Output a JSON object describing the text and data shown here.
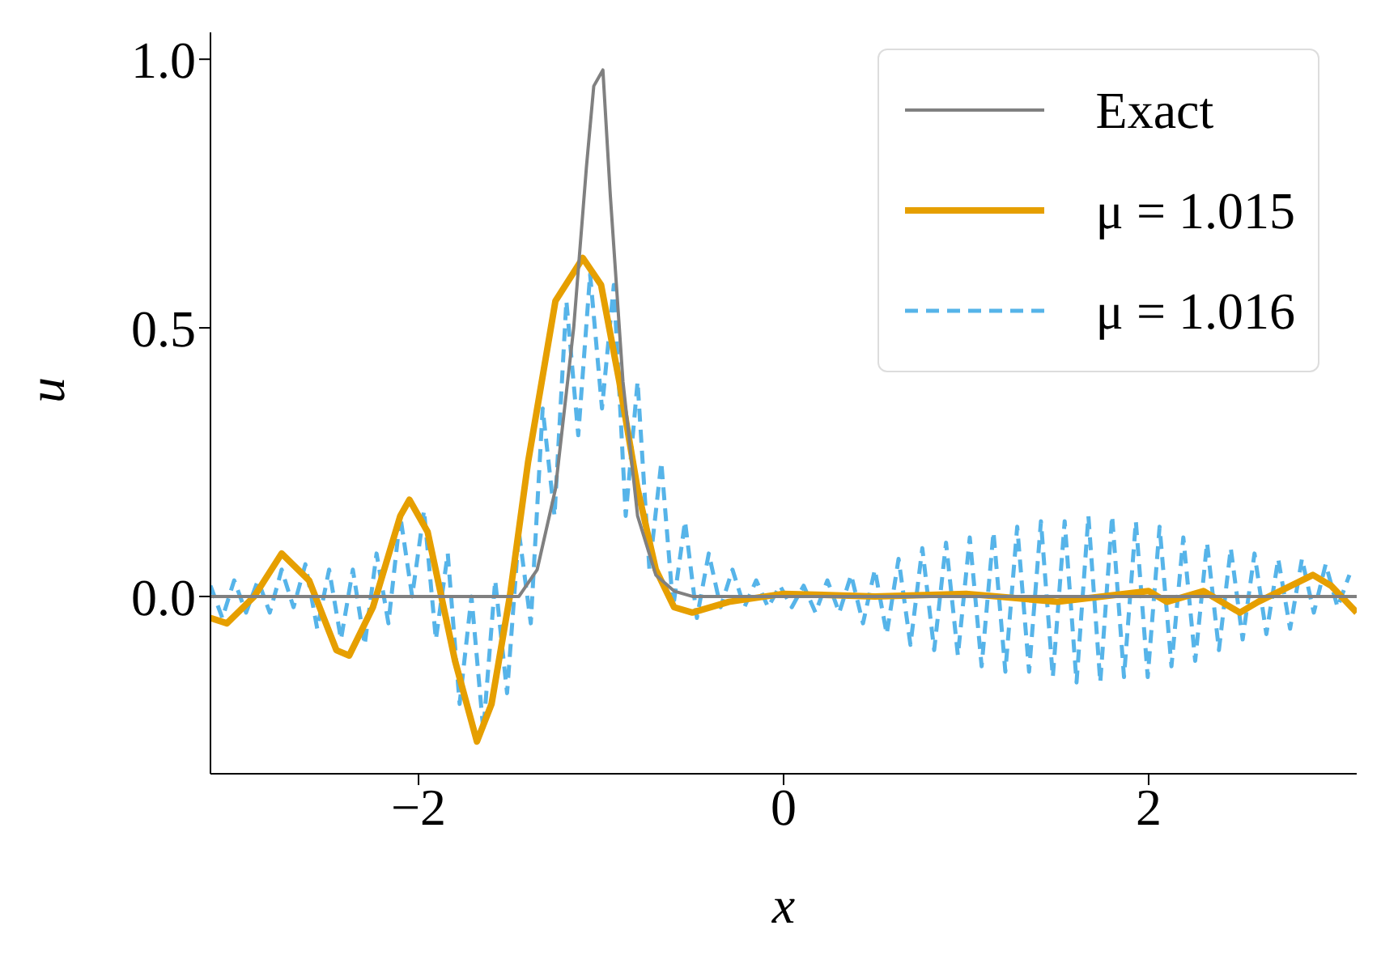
{
  "chart_data": {
    "type": "line",
    "xlabel": "x",
    "ylabel": "u",
    "xlim": [
      -3.14,
      3.14
    ],
    "ylim": [
      -0.33,
      1.05
    ],
    "xticks": [
      {
        "value": -2,
        "label": "−2"
      },
      {
        "value": 0,
        "label": "0"
      },
      {
        "value": 2,
        "label": "2"
      }
    ],
    "yticks": [
      {
        "value": 0,
        "label": "0.0"
      },
      {
        "value": 0.5,
        "label": "0.5"
      },
      {
        "value": 1,
        "label": "1.0"
      }
    ],
    "grid": false,
    "legend": "top right",
    "marker": "none",
    "series": [
      {
        "name": "Exact",
        "color": "#808080",
        "line_style": "solid",
        "x": [
          -3.14,
          -1.45,
          -1.35,
          -1.25,
          -1.15,
          -1.08,
          -1.04,
          -0.99,
          -0.95,
          -0.88,
          -0.8,
          -0.7,
          -0.6,
          -0.5,
          3.14
        ],
        "values": [
          0,
          0,
          0.05,
          0.2,
          0.5,
          0.8,
          0.95,
          0.98,
          0.75,
          0.4,
          0.15,
          0.04,
          0.01,
          0,
          0
        ]
      },
      {
        "name": "μ = 1.015",
        "color": "#e69f00",
        "line_style": "solid",
        "x": [
          -3.14,
          -3.05,
          -2.9,
          -2.75,
          -2.6,
          -2.45,
          -2.38,
          -2.25,
          -2.1,
          -2.05,
          -1.95,
          -1.8,
          -1.68,
          -1.6,
          -1.5,
          -1.4,
          -1.25,
          -1.1,
          -1.0,
          -0.9,
          -0.8,
          -0.7,
          -0.6,
          -0.5,
          -0.3,
          0,
          0.5,
          1.0,
          1.5,
          2.0,
          2.1,
          2.3,
          2.5,
          2.6,
          2.9,
          3.0,
          3.14
        ],
        "values": [
          -0.04,
          -0.05,
          0,
          0.08,
          0.03,
          -0.1,
          -0.11,
          -0.02,
          0.15,
          0.18,
          0.12,
          -0.12,
          -0.27,
          -0.2,
          0,
          0.25,
          0.55,
          0.63,
          0.58,
          0.4,
          0.2,
          0.05,
          -0.02,
          -0.03,
          -0.01,
          0.005,
          0,
          0.005,
          -0.01,
          0.01,
          -0.01,
          0.01,
          -0.03,
          -0.01,
          0.04,
          0.02,
          -0.03
        ]
      },
      {
        "name": "μ = 1.016",
        "color": "#56b4e9",
        "line_style": "dashed",
        "x": [
          -3.14,
          -3.075,
          -3.01,
          -2.945,
          -2.88,
          -2.815,
          -2.75,
          -2.685,
          -2.62,
          -2.555,
          -2.49,
          -2.425,
          -2.36,
          -2.295,
          -2.23,
          -2.165,
          -2.1,
          -2.035,
          -1.97,
          -1.905,
          -1.84,
          -1.775,
          -1.71,
          -1.645,
          -1.58,
          -1.515,
          -1.45,
          -1.385,
          -1.32,
          -1.255,
          -1.19,
          -1.125,
          -1.06,
          -0.995,
          -0.93,
          -0.865,
          -0.8,
          -0.735,
          -0.67,
          -0.605,
          -0.54,
          -0.475,
          -0.41,
          -0.345,
          -0.28,
          -0.215,
          -0.15,
          -0.085,
          -0.02,
          0.045,
          0.11,
          0.175,
          0.24,
          0.305,
          0.37,
          0.435,
          0.5,
          0.565,
          0.63,
          0.695,
          0.76,
          0.825,
          0.89,
          0.955,
          1.02,
          1.085,
          1.15,
          1.215,
          1.28,
          1.345,
          1.41,
          1.475,
          1.54,
          1.605,
          1.67,
          1.735,
          1.8,
          1.865,
          1.93,
          1.995,
          2.06,
          2.125,
          2.19,
          2.255,
          2.32,
          2.385,
          2.45,
          2.515,
          2.58,
          2.645,
          2.71,
          2.775,
          2.84,
          2.905,
          2.97,
          3.035,
          3.1
        ],
        "values": [
          0.02,
          -0.04,
          0.03,
          -0.03,
          0.03,
          -0.03,
          0.05,
          -0.02,
          0.06,
          -0.06,
          0.05,
          -0.08,
          0.05,
          -0.09,
          0.08,
          -0.05,
          0.15,
          0,
          0.16,
          -0.08,
          0.08,
          -0.2,
          0,
          -0.25,
          0.03,
          -0.18,
          0.12,
          -0.05,
          0.35,
          0.15,
          0.55,
          0.3,
          0.6,
          0.35,
          0.58,
          0.15,
          0.4,
          0.05,
          0.25,
          -0.02,
          0.14,
          -0.04,
          0.08,
          -0.02,
          0.05,
          -0.02,
          0.03,
          -0.02,
          0.02,
          -0.02,
          0.02,
          -0.03,
          0.03,
          -0.03,
          0.04,
          -0.05,
          0.05,
          -0.07,
          0.07,
          -0.09,
          0.09,
          -0.1,
          0.1,
          -0.11,
          0.11,
          -0.13,
          0.12,
          -0.14,
          0.13,
          -0.14,
          0.14,
          -0.15,
          0.14,
          -0.16,
          0.15,
          -0.16,
          0.15,
          -0.15,
          0.14,
          -0.15,
          0.13,
          -0.13,
          0.11,
          -0.12,
          0.1,
          -0.1,
          0.09,
          -0.08,
          0.08,
          -0.07,
          0.07,
          -0.06,
          0.07,
          -0.03,
          0.06,
          -0.02,
          0.04
        ]
      }
    ]
  }
}
